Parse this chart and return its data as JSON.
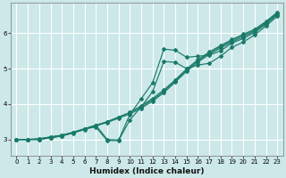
{
  "xlabel": "Humidex (Indice chaleur)",
  "bg_color": "#cce8e8",
  "grid_color": "#ffffff",
  "line_color": "#1a7a6a",
  "xlim": [
    -0.5,
    23.5
  ],
  "ylim": [
    2.55,
    6.85
  ],
  "xticks": [
    0,
    1,
    2,
    3,
    4,
    5,
    6,
    7,
    8,
    9,
    10,
    11,
    12,
    13,
    14,
    15,
    16,
    17,
    18,
    19,
    20,
    21,
    22,
    23
  ],
  "yticks": [
    3,
    4,
    5,
    6
  ],
  "lines": [
    {
      "x": [
        0,
        1,
        2,
        3,
        4,
        5,
        6,
        7,
        8,
        9,
        10,
        11,
        12,
        13,
        14,
        15,
        16,
        17,
        18,
        19,
        20,
        21,
        22,
        23
      ],
      "y": [
        3.0,
        3.0,
        3.0,
        3.05,
        3.1,
        3.18,
        3.28,
        3.38,
        3.48,
        3.6,
        3.72,
        3.88,
        4.08,
        4.32,
        4.62,
        4.92,
        5.18,
        5.4,
        5.58,
        5.75,
        5.9,
        6.05,
        6.28,
        6.55
      ]
    },
    {
      "x": [
        0,
        1,
        2,
        3,
        4,
        5,
        6,
        7,
        8,
        9,
        10,
        11,
        12,
        13,
        14,
        15,
        16,
        17,
        18,
        19,
        20,
        21,
        22,
        23
      ],
      "y": [
        3.0,
        3.0,
        3.02,
        3.07,
        3.12,
        3.2,
        3.3,
        3.4,
        3.5,
        3.63,
        3.76,
        3.92,
        4.12,
        4.36,
        4.65,
        4.96,
        5.22,
        5.44,
        5.62,
        5.79,
        5.94,
        6.08,
        6.31,
        6.57
      ]
    },
    {
      "x": [
        0,
        1,
        2,
        3,
        4,
        5,
        6,
        7,
        8,
        9,
        10,
        11,
        12,
        13,
        14,
        15,
        16,
        17,
        18,
        19,
        20,
        21,
        22,
        23
      ],
      "y": [
        3.0,
        3.0,
        3.02,
        3.07,
        3.12,
        3.2,
        3.3,
        3.4,
        3.5,
        3.63,
        3.76,
        3.95,
        4.16,
        4.4,
        4.68,
        4.99,
        5.25,
        5.47,
        5.65,
        5.82,
        5.97,
        6.11,
        6.33,
        6.59
      ]
    },
    {
      "x": [
        0,
        1,
        2,
        3,
        4,
        5,
        6,
        7,
        8,
        9,
        10,
        11,
        12,
        13,
        14,
        15,
        16,
        17,
        18,
        19,
        20,
        21,
        22,
        23
      ],
      "y": [
        3.0,
        3.0,
        3.0,
        3.05,
        3.1,
        3.2,
        3.3,
        3.35,
        2.97,
        2.97,
        3.55,
        3.92,
        4.35,
        5.2,
        5.18,
        5.0,
        5.1,
        5.15,
        5.35,
        5.6,
        5.75,
        5.95,
        6.2,
        6.48
      ]
    },
    {
      "x": [
        0,
        1,
        2,
        3,
        4,
        5,
        6,
        7,
        8,
        9,
        10,
        11,
        12,
        13,
        14,
        15,
        16,
        17,
        18,
        19,
        20,
        21,
        22,
        23
      ],
      "y": [
        3.0,
        3.0,
        3.0,
        3.05,
        3.1,
        3.2,
        3.3,
        3.4,
        3.0,
        2.98,
        3.7,
        4.15,
        4.6,
        5.55,
        5.52,
        5.32,
        5.35,
        5.38,
        5.5,
        5.72,
        5.85,
        6.02,
        6.25,
        6.52
      ]
    }
  ]
}
